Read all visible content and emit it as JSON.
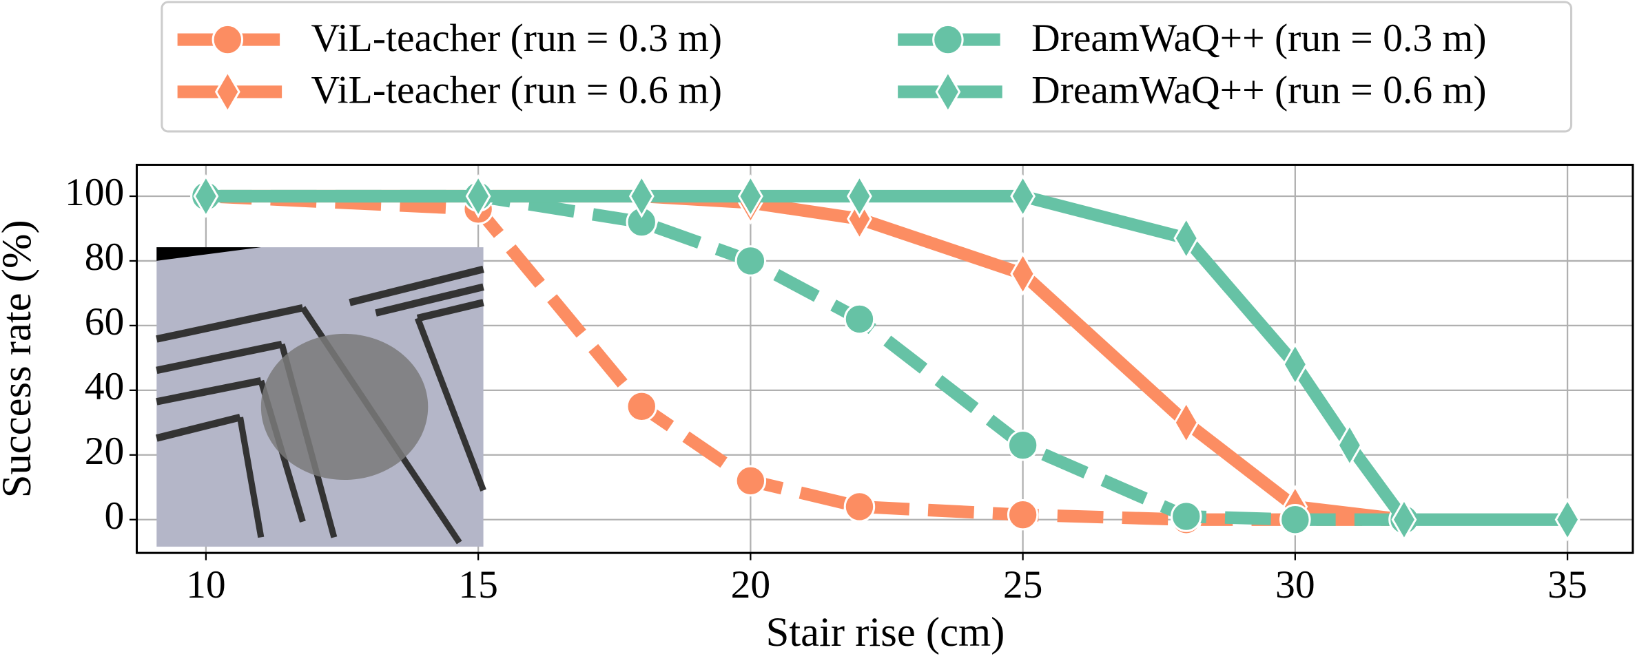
{
  "chart_data": {
    "type": "line",
    "xlabel": "Stair rise (cm)",
    "ylabel": "Success rate (%)",
    "xlim": [
      8.73,
      36.2
    ],
    "ylim": [
      -10.3,
      109.7
    ],
    "xticks": [
      10,
      15,
      20,
      25,
      30,
      35
    ],
    "yticks": [
      0,
      20,
      40,
      60,
      80,
      100
    ],
    "grid": true,
    "legend": "top",
    "series": [
      {
        "name": "ViL-teacher (run = 0.3 m)",
        "color": "#fc8d62",
        "dash": true,
        "marker": "circle",
        "x": [
          10,
          15,
          18,
          20,
          22,
          25,
          28,
          30,
          32
        ],
        "values": [
          100,
          96,
          35,
          12,
          4,
          1.5,
          0,
          0,
          0
        ]
      },
      {
        "name": "ViL-teacher (run = 0.6 m)",
        "color": "#fc8d62",
        "dash": false,
        "marker": "diamond",
        "x": [
          10,
          15,
          18,
          20,
          22,
          25,
          28,
          30,
          32
        ],
        "values": [
          100,
          100,
          100,
          98,
          93,
          76,
          30,
          4,
          0
        ]
      },
      {
        "name": "DreamWaQ++ (run = 0.3 m)",
        "color": "#66c2a5",
        "dash": true,
        "marker": "circle",
        "x": [
          10,
          15,
          18,
          20,
          22,
          25,
          28,
          30,
          32
        ],
        "values": [
          100,
          100,
          92,
          80,
          62,
          23,
          1,
          0,
          0
        ]
      },
      {
        "name": "DreamWaQ++ (run = 0.6 m)",
        "color": "#66c2a5",
        "dash": false,
        "marker": "diamond",
        "x": [
          10,
          15,
          18,
          20,
          22,
          25,
          28,
          30,
          31,
          32,
          35
        ],
        "values": [
          100,
          100,
          100,
          100,
          100,
          100,
          87,
          48,
          23,
          0,
          0
        ]
      }
    ]
  }
}
